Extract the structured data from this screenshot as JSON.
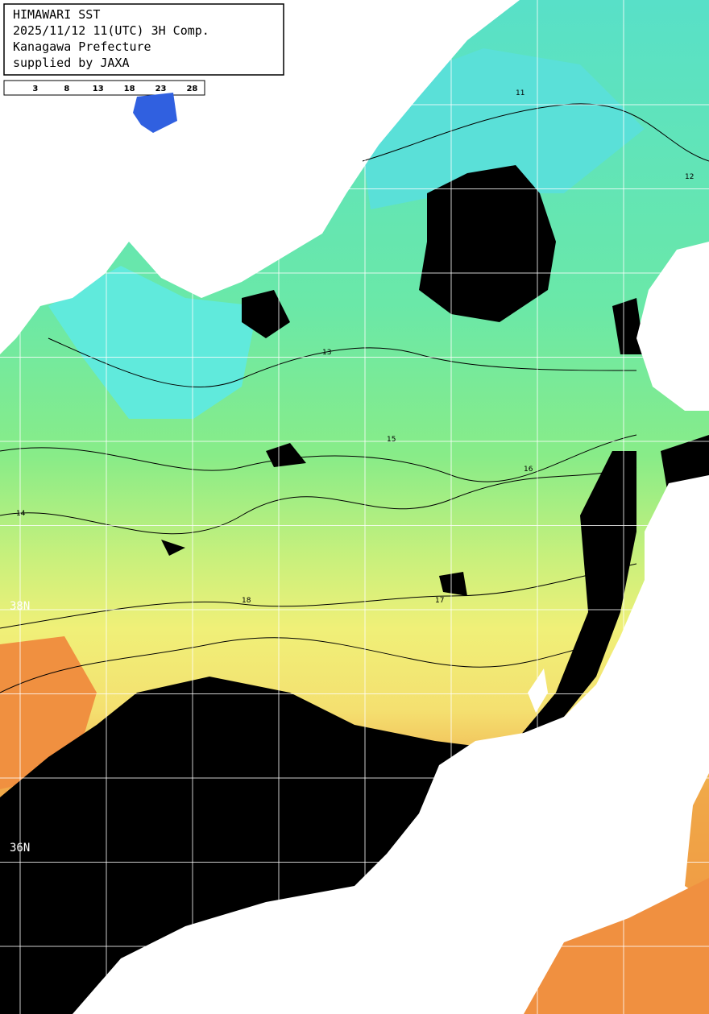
{
  "header": {
    "lines": [
      "HIMAWARI SST",
      "2025/11/12 11(UTC) 3H Comp.",
      "Kanagawa Prefecture",
      "supplied by JAXA"
    ]
  },
  "colorbar": {
    "range": [
      -2,
      30
    ],
    "ticks": [
      3,
      8,
      13,
      18,
      23,
      28
    ]
  },
  "latitude_labels": [
    "38N",
    "36N"
  ],
  "contour_labels": [
    "11",
    "12",
    "13",
    "14",
    "15",
    "16",
    "17",
    "18"
  ]
}
